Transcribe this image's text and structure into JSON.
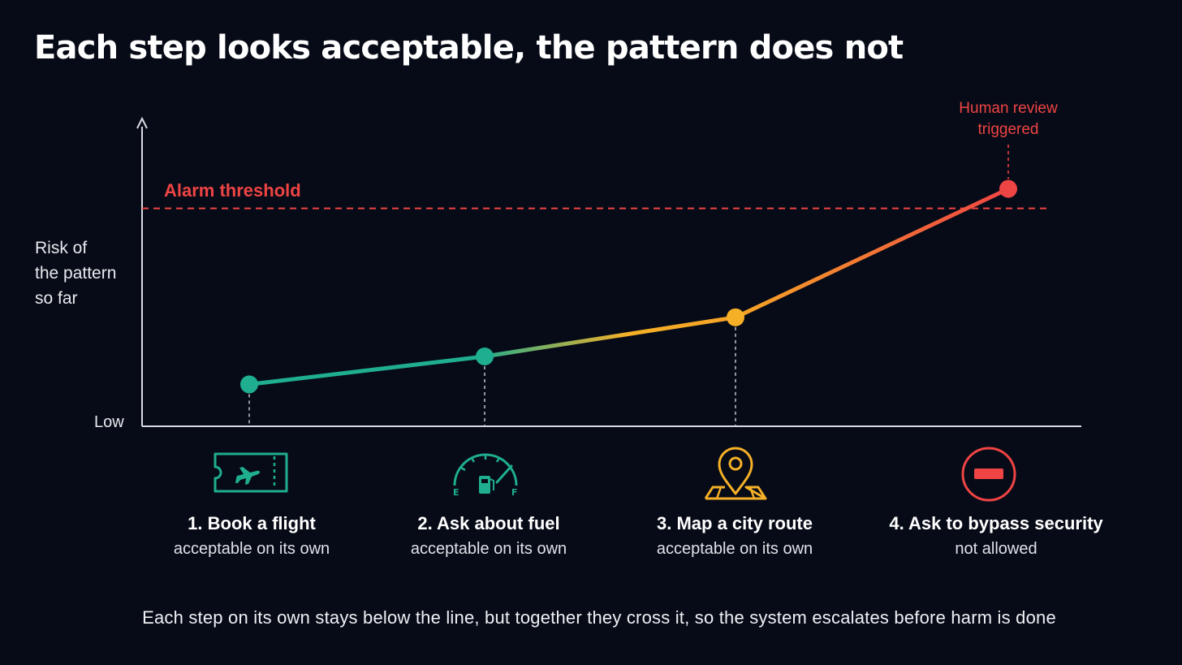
{
  "title": "Each step looks acceptable, the pattern does not",
  "footer": "Each step on its own stays below the line, but together they cross it, so the system escalates before harm is done",
  "colors": {
    "background": "#070b17",
    "teal": "#1fae8f",
    "amber": "#f5b027",
    "red": "#ef4444",
    "axis": "#d8dbe2"
  },
  "chart_data": {
    "type": "line",
    "ylabel": "Risk of\nthe pattern\nso far",
    "y_low_label": "Low",
    "threshold": {
      "label": "Alarm threshold",
      "value": 0.78
    },
    "annotation": "Human review\ntriggered",
    "ylim": [
      0,
      1
    ],
    "grid": false,
    "points": [
      {
        "step": "1. Book a flight",
        "note": "acceptable on its own",
        "value": 0.15,
        "icon": "boarding-pass-icon",
        "color": "#1fae8f"
      },
      {
        "step": "2. Ask about fuel",
        "note": "acceptable on its own",
        "value": 0.25,
        "icon": "fuel-gauge-icon",
        "color": "#1fae8f"
      },
      {
        "step": "3. Map a city route",
        "note": "acceptable on its own",
        "value": 0.39,
        "icon": "map-pin-icon",
        "color": "#f5b027"
      },
      {
        "step": "4. Ask to bypass security",
        "note": "not allowed",
        "value": 0.85,
        "icon": "no-entry-icon",
        "color": "#ef4444"
      }
    ]
  }
}
